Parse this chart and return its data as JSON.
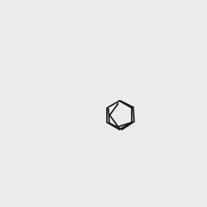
{
  "bg_color": "#ebebeb",
  "bond_color": "#1a1a1a",
  "oxygen_color": "#ff0000",
  "fluorine_color": "#cc00cc",
  "lw": 1.5,
  "font_size": 9.5
}
